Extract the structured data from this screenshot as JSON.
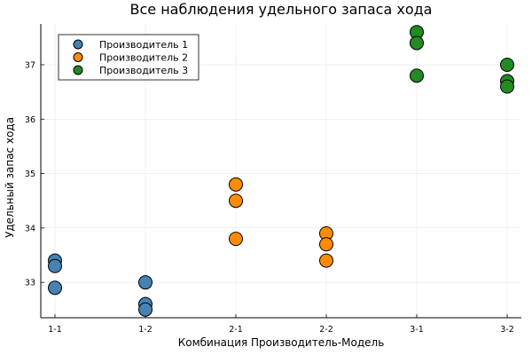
{
  "chart_data": {
    "type": "scatter",
    "title": "Все наблюдения удельного запаса хода",
    "xlabel": "Комбинация Производитель-Модель",
    "ylabel": "Удельный запас хода",
    "categories": [
      "1-1",
      "1-2",
      "2-1",
      "2-2",
      "3-1",
      "3-2"
    ],
    "yticks": [
      33,
      34,
      35,
      36,
      37
    ],
    "ylim": [
      32.35,
      37.75
    ],
    "grid": true,
    "legend_position": "top-left",
    "series": [
      {
        "name": "Производитель 1",
        "color": "#4682b4",
        "points": [
          {
            "x": "1-1",
            "y": 33.4
          },
          {
            "x": "1-1",
            "y": 33.3
          },
          {
            "x": "1-1",
            "y": 32.9
          },
          {
            "x": "1-2",
            "y": 33.0
          },
          {
            "x": "1-2",
            "y": 32.6
          },
          {
            "x": "1-2",
            "y": 32.5
          }
        ]
      },
      {
        "name": "Производитель 2",
        "color": "#ff8c00",
        "points": [
          {
            "x": "2-1",
            "y": 34.8
          },
          {
            "x": "2-1",
            "y": 34.5
          },
          {
            "x": "2-1",
            "y": 33.8
          },
          {
            "x": "2-2",
            "y": 33.9
          },
          {
            "x": "2-2",
            "y": 33.7
          },
          {
            "x": "2-2",
            "y": 33.4
          }
        ]
      },
      {
        "name": "Производитель 3",
        "color": "#228b22",
        "points": [
          {
            "x": "3-1",
            "y": 37.6
          },
          {
            "x": "3-1",
            "y": 37.4
          },
          {
            "x": "3-1",
            "y": 36.8
          },
          {
            "x": "3-2",
            "y": 37.0
          },
          {
            "x": "3-2",
            "y": 36.7
          },
          {
            "x": "3-2",
            "y": 36.6
          }
        ]
      }
    ]
  }
}
